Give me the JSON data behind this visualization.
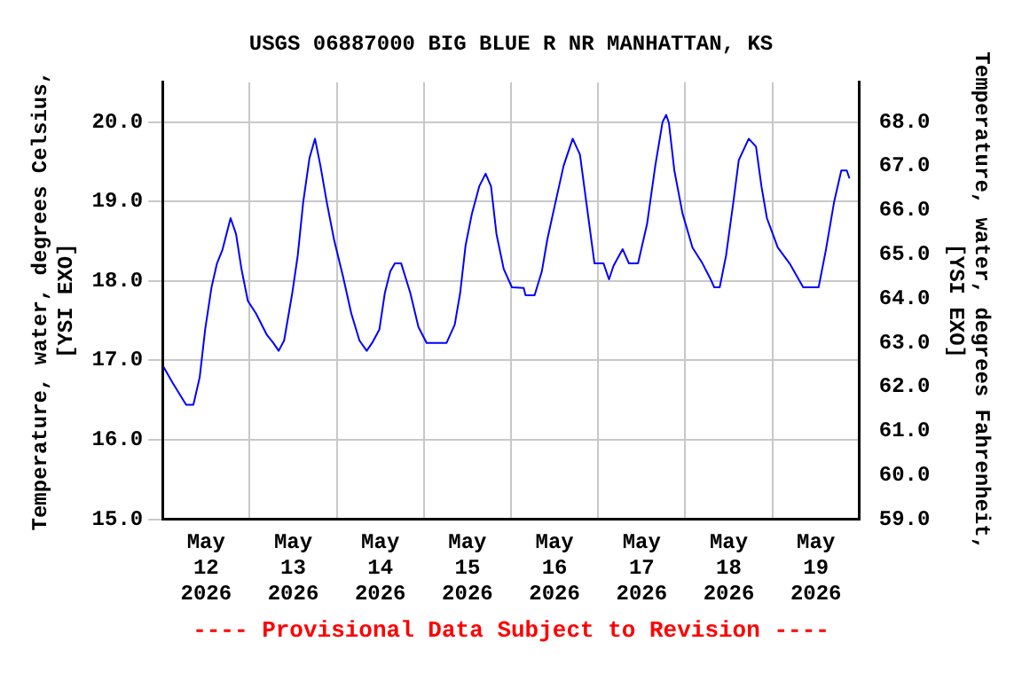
{
  "chart_data": {
    "type": "line",
    "title": "USGS 06887000 BIG BLUE R NR MANHATTAN, KS",
    "ylabel": "Temperature, water, degrees Celsius,\n[YSI EXO]",
    "y2label": "Temperature, water, degrees Fahrenheit,\n[YSI EXO]",
    "annotations": [
      "---- Provisional Data Subject to Revision ----"
    ],
    "x": [
      "2026-05-12T00:15",
      "2026-05-12T02:45",
      "2026-05-12T06:30",
      "2026-05-12T08:30",
      "2026-05-12T10:15",
      "2026-05-12T11:45",
      "2026-05-12T13:30",
      "2026-05-12T15:00",
      "2026-05-12T16:30",
      "2026-05-12T18:45",
      "2026-05-12T20:15",
      "2026-05-12T21:45",
      "2026-05-12T23:30",
      "2026-05-13T01:45",
      "2026-05-13T04:45",
      "2026-05-13T06:30",
      "2026-05-13T08:00",
      "2026-05-13T09:30",
      "2026-05-13T11:45",
      "2026-05-13T13:15",
      "2026-05-13T14:45",
      "2026-05-13T16:30",
      "2026-05-13T18:00",
      "2026-05-13T19:30",
      "2026-05-13T21:15",
      "2026-05-13T23:15",
      "2026-05-14T01:45",
      "2026-05-14T04:00",
      "2026-05-14T06:15",
      "2026-05-14T08:15",
      "2026-05-14T09:45",
      "2026-05-14T11:45",
      "2026-05-14T13:15",
      "2026-05-14T14:45",
      "2026-05-14T16:00",
      "2026-05-14T17:45",
      "2026-05-14T20:15",
      "2026-05-14T22:30",
      "2026-05-15T00:45",
      "2026-05-15T06:15",
      "2026-05-15T08:30",
      "2026-05-15T10:00",
      "2026-05-15T11:30",
      "2026-05-15T13:15",
      "2026-05-15T15:15",
      "2026-05-15T17:00",
      "2026-05-15T18:30",
      "2026-05-15T20:00",
      "2026-05-15T22:00",
      "2026-05-16T00:15",
      "2026-05-16T03:30",
      "2026-05-16T04:00",
      "2026-05-16T06:30",
      "2026-05-16T08:30",
      "2026-05-16T10:00",
      "2026-05-16T12:15",
      "2026-05-16T14:30",
      "2026-05-16T17:00",
      "2026-05-16T19:00",
      "2026-05-16T20:45",
      "2026-05-16T23:00",
      "2026-05-17T01:30",
      "2026-05-17T03:00",
      "2026-05-17T04:15",
      "2026-05-17T06:45",
      "2026-05-17T08:30",
      "2026-05-17T11:00",
      "2026-05-17T13:30",
      "2026-05-17T15:45",
      "2026-05-17T17:45",
      "2026-05-17T18:45",
      "2026-05-17T19:30",
      "2026-05-17T21:00",
      "2026-05-17T23:15",
      "2026-05-18T02:00",
      "2026-05-18T04:45",
      "2026-05-18T07:00",
      "2026-05-18T08:00",
      "2026-05-18T09:30",
      "2026-05-18T11:15",
      "2026-05-18T13:15",
      "2026-05-18T14:45",
      "2026-05-18T17:30",
      "2026-05-18T19:30",
      "2026-05-18T21:00",
      "2026-05-18T22:30",
      "2026-05-19T01:30",
      "2026-05-19T04:45",
      "2026-05-19T08:30",
      "2026-05-19T12:45",
      "2026-05-19T14:45",
      "2026-05-19T17:00",
      "2026-05-19T19:00",
      "2026-05-19T20:30",
      "2026-05-19T21:15"
    ],
    "series": [
      {
        "color": "#0000ff",
        "values": [
          16.92,
          16.72,
          16.44,
          16.44,
          16.79,
          17.39,
          17.92,
          18.22,
          18.39,
          18.79,
          18.59,
          18.15,
          17.75,
          17.59,
          17.32,
          17.22,
          17.12,
          17.25,
          17.85,
          18.32,
          18.99,
          19.55,
          19.79,
          19.45,
          18.99,
          18.52,
          18.05,
          17.59,
          17.25,
          17.12,
          17.22,
          17.39,
          17.85,
          18.12,
          18.22,
          18.22,
          17.85,
          17.42,
          17.22,
          17.22,
          17.45,
          17.85,
          18.45,
          18.85,
          19.19,
          19.35,
          19.19,
          18.59,
          18.15,
          17.92,
          17.91,
          17.82,
          17.82,
          18.12,
          18.52,
          18.99,
          19.45,
          19.79,
          19.59,
          18.99,
          18.22,
          18.22,
          18.02,
          18.19,
          18.4,
          18.22,
          18.22,
          18.72,
          19.45,
          20.0,
          20.09,
          19.99,
          19.39,
          18.85,
          18.42,
          18.22,
          18.02,
          17.92,
          17.92,
          18.32,
          18.99,
          19.52,
          19.79,
          19.69,
          19.19,
          18.79,
          18.42,
          18.22,
          17.92,
          17.92,
          18.39,
          18.99,
          19.39,
          19.39,
          19.29
        ]
      }
    ],
    "xlim": [
      "2026-05-12T00:00",
      "2026-05-20T00:00"
    ],
    "xticks": [
      {
        "value": "2026-05-12T12:00",
        "label": "May 12 2026"
      },
      {
        "value": "2026-05-13T00:00",
        "label": null
      },
      {
        "value": "2026-05-13T12:00",
        "label": "May 13 2026"
      },
      {
        "value": "2026-05-14T00:00",
        "label": null
      },
      {
        "value": "2026-05-14T12:00",
        "label": "May 14 2026"
      },
      {
        "value": "2026-05-15T00:00",
        "label": null
      },
      {
        "value": "2026-05-15T12:00",
        "label": "May 15 2026"
      },
      {
        "value": "2026-05-16T00:00",
        "label": null
      },
      {
        "value": "2026-05-16T12:00",
        "label": "May 16 2026"
      },
      {
        "value": "2026-05-17T00:00",
        "label": null
      },
      {
        "value": "2026-05-17T12:00",
        "label": "May 17 2026"
      },
      {
        "value": "2026-05-18T00:00",
        "label": null
      },
      {
        "value": "2026-05-18T12:00",
        "label": "May 18 2026"
      },
      {
        "value": "2026-05-19T00:00",
        "label": null
      },
      {
        "value": "2026-05-19T12:00",
        "label": "May 19 2026"
      }
    ],
    "ylim": [
      15,
      20.5
    ],
    "yticks": [
      {
        "value": 15,
        "label": "15.0"
      },
      {
        "value": 16,
        "label": "16.0"
      },
      {
        "value": 17,
        "label": "17.0"
      },
      {
        "value": 18,
        "label": "18.0"
      },
      {
        "value": 19,
        "label": "19.0"
      },
      {
        "value": 20,
        "label": "20.0"
      }
    ],
    "y2lim": [
      59,
      68.9
    ],
    "y2ticks": [
      {
        "value": 59,
        "label": "59.0"
      },
      {
        "value": 60,
        "label": "60.0"
      },
      {
        "value": 61,
        "label": "61.0"
      },
      {
        "value": 62,
        "label": "62.0"
      },
      {
        "value": 63,
        "label": "63.0"
      },
      {
        "value": 64,
        "label": "64.0"
      },
      {
        "value": 65,
        "label": "65.0"
      },
      {
        "value": 66,
        "label": "66.0"
      },
      {
        "value": 67,
        "label": "67.0"
      },
      {
        "value": 68,
        "label": "68.0"
      }
    ],
    "grid": true,
    "legend": false,
    "marker": "none",
    "line_style": "solid"
  }
}
